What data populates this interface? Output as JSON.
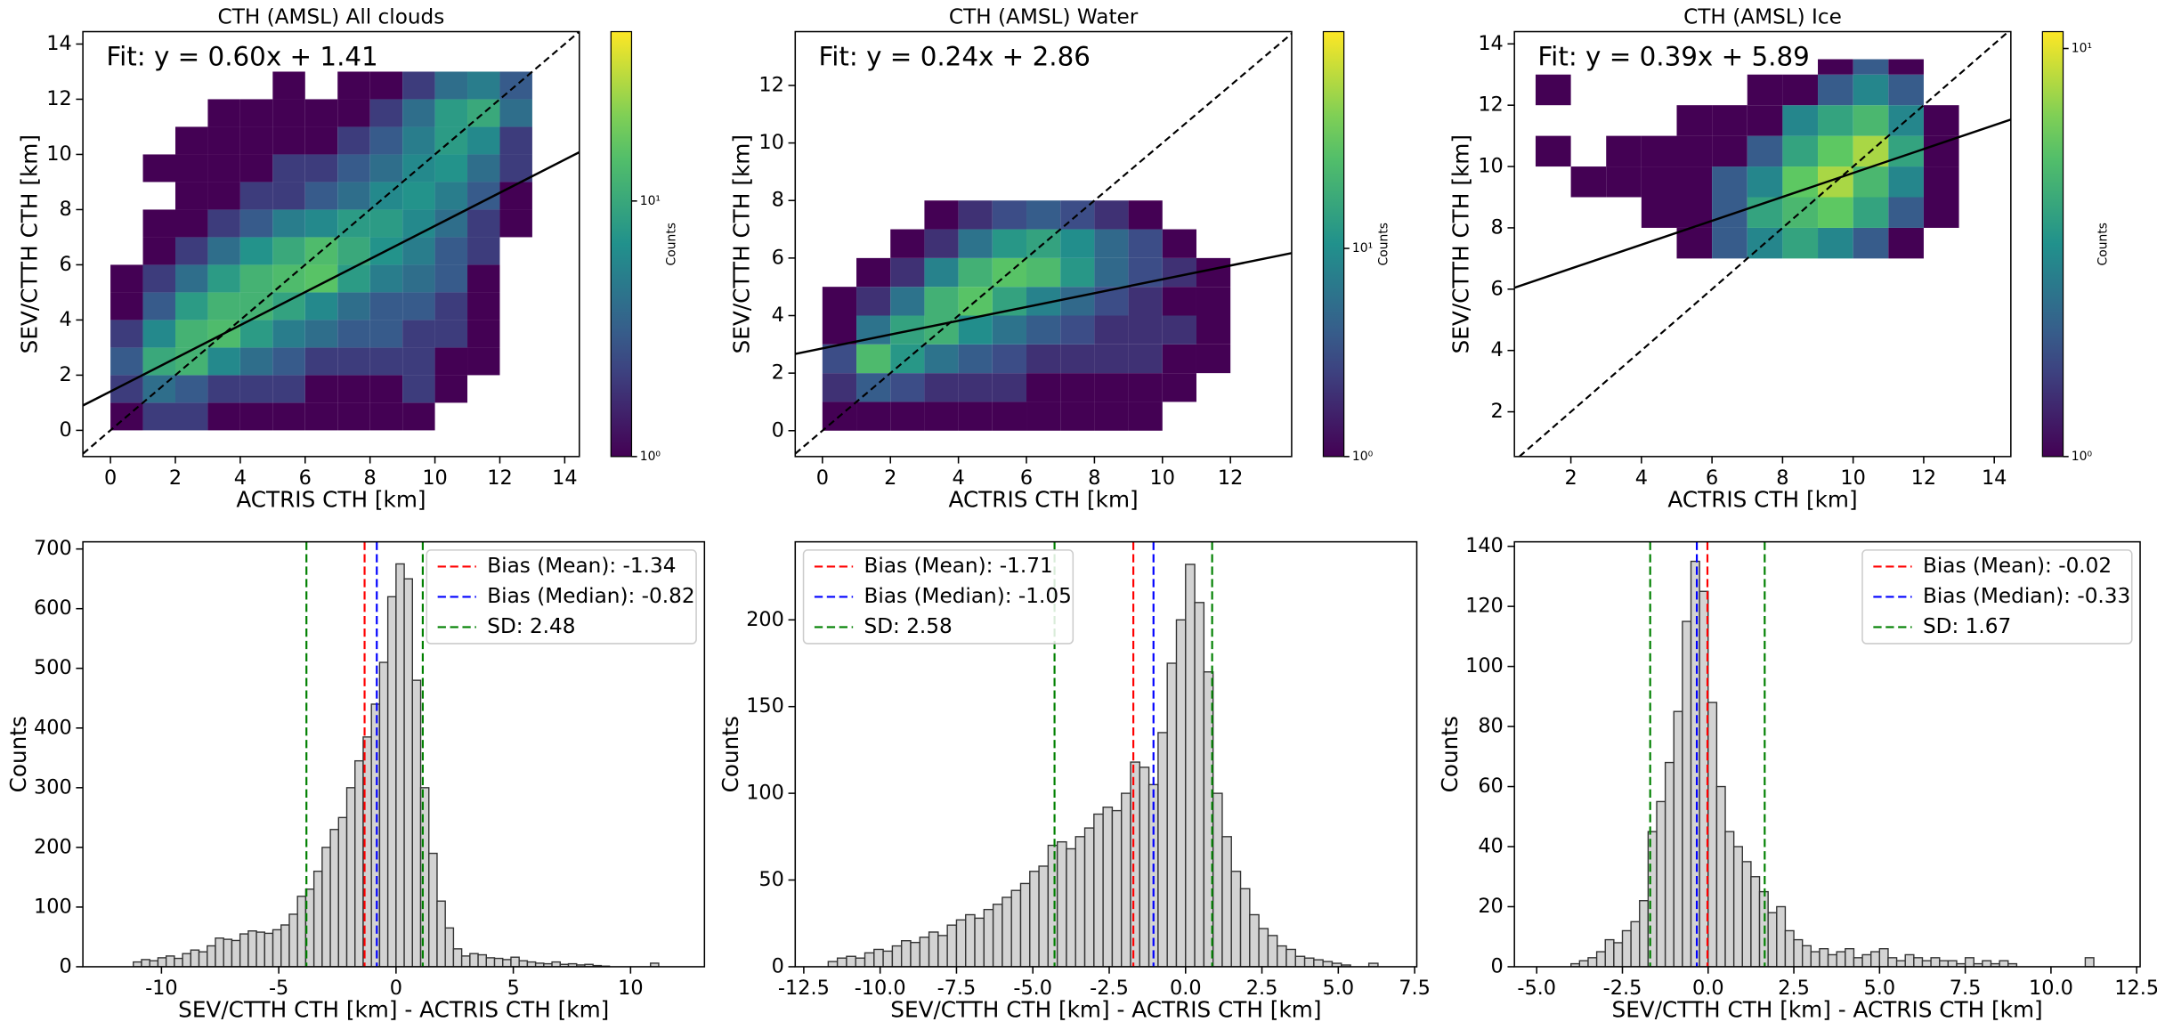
{
  "chart_data": [
    {
      "type": "heatmap",
      "title": "CTH (AMSL) All clouds",
      "x_label": "ACTRIS CTH [km]",
      "y_label": "SEV/CTTH CTH [km]",
      "xlim": [
        -0.85,
        14.45
      ],
      "ylim": [
        -0.95,
        14.45
      ],
      "xticks": [
        0,
        2,
        4,
        6,
        8,
        10,
        12,
        14
      ],
      "yticks": [
        0,
        2,
        4,
        6,
        8,
        10,
        12,
        14
      ],
      "fit": {
        "label": "Fit: y = 0.60x + 1.41",
        "slope": 0.6,
        "intercept": 1.41
      },
      "colorbar": {
        "label": "Counts",
        "log": true,
        "clim": [
          1,
          46
        ],
        "ticks": [
          {
            "value": 1,
            "label": "10⁰"
          },
          {
            "value": 10,
            "label": "10¹"
          }
        ]
      },
      "x_edges": [
        0,
        1,
        2,
        3,
        4,
        5,
        6,
        7,
        8,
        9,
        10,
        11,
        12,
        13
      ],
      "y_edges": [
        0,
        1,
        2,
        3,
        4,
        5,
        6,
        7,
        8,
        9,
        10,
        11,
        12,
        13
      ],
      "z": [
        [
          1,
          2,
          2,
          1,
          1,
          1,
          1,
          1,
          1,
          1,
          null,
          null,
          null
        ],
        [
          2,
          4,
          3,
          2,
          2,
          2,
          1,
          1,
          1,
          2,
          1,
          null,
          null
        ],
        [
          3,
          10,
          12,
          6,
          4,
          3,
          2,
          2,
          2,
          2,
          1,
          1,
          null
        ],
        [
          2,
          6,
          12,
          14,
          8,
          5,
          4,
          3,
          3,
          2,
          2,
          1,
          null
        ],
        [
          1,
          3,
          8,
          12,
          12,
          9,
          6,
          4,
          3,
          3,
          2,
          1,
          null
        ],
        [
          1,
          2,
          4,
          8,
          12,
          14,
          16,
          8,
          5,
          4,
          3,
          1,
          null
        ],
        [
          null,
          1,
          2,
          4,
          7,
          10,
          14,
          10,
          7,
          5,
          3,
          2,
          null
        ],
        [
          null,
          1,
          1,
          2,
          3,
          5,
          6,
          8,
          8,
          6,
          4,
          2,
          1
        ],
        [
          null,
          null,
          1,
          1,
          2,
          2,
          3,
          4,
          6,
          7,
          5,
          3,
          1
        ],
        [
          null,
          1,
          1,
          1,
          1,
          2,
          2,
          3,
          4,
          6,
          7,
          4,
          2
        ],
        [
          null,
          null,
          1,
          1,
          1,
          1,
          1,
          2,
          3,
          5,
          8,
          6,
          2
        ],
        [
          null,
          null,
          null,
          1,
          1,
          1,
          1,
          1,
          2,
          4,
          8,
          10,
          4
        ],
        [
          null,
          null,
          null,
          null,
          null,
          1,
          null,
          1,
          1,
          2,
          4,
          5,
          3
        ]
      ]
    },
    {
      "type": "heatmap",
      "title": "CTH (AMSL) Water",
      "x_label": "ACTRIS CTH [km]",
      "y_label": "SEV/CTTH CTH [km]",
      "xlim": [
        -0.8,
        13.8
      ],
      "ylim": [
        -0.9,
        13.87
      ],
      "xticks": [
        0,
        2,
        4,
        6,
        8,
        10,
        12
      ],
      "yticks": [
        0,
        2,
        4,
        6,
        8,
        10,
        12
      ],
      "fit": {
        "label": "Fit: y = 0.24x + 2.86",
        "slope": 0.24,
        "intercept": 2.86
      },
      "colorbar": {
        "label": "Counts",
        "log": true,
        "clim": [
          1,
          110
        ],
        "ticks": [
          {
            "value": 1,
            "label": "10⁰"
          },
          {
            "value": 10,
            "label": "10¹"
          }
        ]
      },
      "x_edges": [
        0,
        1,
        2,
        3,
        4,
        5,
        6,
        7,
        8,
        9,
        10,
        11,
        12
      ],
      "y_edges": [
        0,
        1,
        2,
        3,
        4,
        5,
        6,
        7,
        8
      ],
      "z": [
        [
          1,
          1,
          1,
          1,
          1,
          1,
          1,
          1,
          1,
          1,
          null,
          null
        ],
        [
          2,
          4,
          3,
          2,
          2,
          2,
          1,
          1,
          1,
          1,
          1,
          null
        ],
        [
          3,
          25,
          12,
          6,
          4,
          3,
          2,
          2,
          2,
          2,
          1,
          1
        ],
        [
          1,
          6,
          15,
          20,
          10,
          6,
          4,
          3,
          2,
          2,
          2,
          1
        ],
        [
          1,
          2,
          6,
          20,
          30,
          15,
          8,
          5,
          3,
          2,
          1,
          1
        ],
        [
          null,
          1,
          2,
          8,
          20,
          30,
          25,
          12,
          5,
          3,
          2,
          1
        ],
        [
          null,
          null,
          1,
          2,
          6,
          12,
          15,
          10,
          5,
          3,
          1,
          null
        ],
        [
          null,
          null,
          null,
          1,
          2,
          3,
          4,
          3,
          2,
          1,
          null,
          null
        ]
      ]
    },
    {
      "type": "heatmap",
      "title": "CTH (AMSL) Ice",
      "x_label": "ACTRIS CTH [km]",
      "y_label": "SEV/CTTH CTH [km]",
      "xlim": [
        0.4,
        14.47
      ],
      "ylim": [
        0.54,
        14.4
      ],
      "xticks": [
        2,
        4,
        6,
        8,
        10,
        12,
        14
      ],
      "yticks": [
        2,
        4,
        6,
        8,
        10,
        12,
        14
      ],
      "fit": {
        "label": "Fit: y = 0.39x + 5.89",
        "slope": 0.39,
        "intercept": 5.89
      },
      "colorbar": {
        "label": "Counts",
        "log": true,
        "clim": [
          1,
          11
        ],
        "ticks": [
          {
            "value": 1,
            "label": "10⁰"
          },
          {
            "value": 10,
            "label": "10¹"
          }
        ]
      },
      "x_edges": [
        1,
        2,
        3,
        4,
        5,
        6,
        7,
        8,
        9,
        10,
        11,
        12,
        13
      ],
      "y_edges": [
        7,
        8,
        9,
        10,
        11,
        12,
        13,
        13.5
      ],
      "z": [
        [
          null,
          null,
          null,
          null,
          1,
          2,
          3,
          4,
          3,
          2,
          1,
          null
        ],
        [
          null,
          null,
          null,
          1,
          1,
          2,
          4,
          5,
          6,
          4,
          2,
          1
        ],
        [
          null,
          1,
          1,
          1,
          1,
          2,
          3,
          6,
          8,
          5,
          3,
          1
        ],
        [
          1,
          null,
          1,
          1,
          1,
          1,
          2,
          4,
          6,
          8,
          4,
          1
        ],
        [
          null,
          null,
          null,
          null,
          1,
          1,
          1,
          3,
          4,
          5,
          3,
          1
        ],
        [
          1,
          null,
          null,
          null,
          null,
          null,
          1,
          1,
          2,
          3,
          2,
          null
        ],
        [
          null,
          null,
          null,
          null,
          null,
          null,
          null,
          null,
          1,
          2,
          1,
          null
        ]
      ]
    },
    {
      "type": "histogram",
      "x_label": "SEV/CTTH CTH [km] - ACTRIS CTH [km]",
      "y_label": "Counts",
      "xlim": [
        -13.35,
        13.15
      ],
      "ylim": [
        0,
        712
      ],
      "xticks": [
        -10,
        -5,
        0,
        5,
        10
      ],
      "yticks": [
        0,
        100,
        200,
        300,
        400,
        500,
        600,
        700
      ],
      "color": "#d3d3d3",
      "legend": "upper right",
      "bins": [
        -11.2,
        -10.85,
        -10.5,
        -10.15,
        -9.8,
        -9.45,
        -9.1,
        -8.75,
        -8.4,
        -8.05,
        -7.7,
        -7.35,
        -7,
        -6.65,
        -6.3,
        -5.95,
        -5.6,
        -5.25,
        -4.9,
        -4.55,
        -4.2,
        -3.85,
        -3.5,
        -3.15,
        -2.8,
        -2.45,
        -2.1,
        -1.75,
        -1.4,
        -1.05,
        -0.7,
        -0.35,
        0,
        0.35,
        0.7,
        1.05,
        1.4,
        1.75,
        2.1,
        2.45,
        2.8,
        3.15,
        3.5,
        3.85,
        4.2,
        4.55,
        4.9,
        5.25,
        5.6,
        5.95,
        6.3,
        6.65,
        7,
        7.35,
        7.7,
        8.05,
        8.4,
        8.75,
        9.1,
        9.45,
        9.8,
        10.15,
        10.5,
        10.85,
        11.2
      ],
      "counts": [
        8,
        12,
        10,
        15,
        18,
        14,
        22,
        28,
        25,
        35,
        48,
        46,
        44,
        55,
        60,
        58,
        56,
        62,
        70,
        88,
        118,
        130,
        160,
        200,
        230,
        250,
        300,
        345,
        385,
        440,
        510,
        620,
        675,
        650,
        480,
        300,
        190,
        110,
        65,
        30,
        18,
        22,
        20,
        15,
        14,
        12,
        16,
        10,
        8,
        6,
        5,
        8,
        4,
        5,
        3,
        4,
        2,
        1,
        0,
        0,
        0,
        0,
        0,
        6
      ],
      "lines": [
        {
          "label": "Bias (Mean): -1.34",
          "value": -1.34,
          "color": "#ff0000"
        },
        {
          "label": "Bias (Median): -0.82",
          "value": -0.82,
          "color": "#0000ff"
        },
        {
          "label": "SD: 2.48",
          "value": 2.48,
          "color": "#008000",
          "lines": [
            -3.82,
            1.14
          ]
        }
      ]
    },
    {
      "type": "histogram",
      "x_label": "SEV/CTTH CTH [km] - ACTRIS CTH [km]",
      "y_label": "Counts",
      "xlim": [
        -12.78,
        7.57
      ],
      "ylim": [
        0,
        245
      ],
      "xticks": [
        -12.5,
        {
          "value": -10,
          "label": "-10.0"
        },
        -7.5,
        {
          "value": -5,
          "label": "-5.0"
        },
        -2.5,
        {
          "value": 0,
          "label": "0.0"
        },
        2.5,
        {
          "value": 5,
          "label": "5.0"
        },
        7.5
      ],
      "yticks": [
        0,
        50,
        100,
        150,
        200
      ],
      "color": "#d3d3d3",
      "legend": "upper left",
      "bins": [
        -11.7,
        -11.4,
        -11.1,
        -10.8,
        -10.5,
        -10.2,
        -9.9,
        -9.6,
        -9.3,
        -9,
        -8.7,
        -8.4,
        -8.1,
        -7.8,
        -7.5,
        -7.2,
        -6.9,
        -6.6,
        -6.3,
        -6,
        -5.7,
        -5.4,
        -5.1,
        -4.8,
        -4.5,
        -4.2,
        -3.9,
        -3.6,
        -3.3,
        -3,
        -2.7,
        -2.4,
        -2.1,
        -1.8,
        -1.5,
        -1.2,
        -0.9,
        -0.6,
        -0.3,
        0,
        0.3,
        0.6,
        0.9,
        1.2,
        1.5,
        1.8,
        2.1,
        2.4,
        2.7,
        3,
        3.3,
        3.6,
        3.9,
        4.2,
        4.5,
        4.8,
        5.1,
        5.4,
        5.7,
        6,
        6.3
      ],
      "counts": [
        3,
        5,
        6,
        5,
        8,
        10,
        9,
        12,
        15,
        14,
        17,
        20,
        18,
        24,
        27,
        30,
        28,
        33,
        36,
        40,
        44,
        48,
        55,
        58,
        70,
        72,
        68,
        75,
        80,
        88,
        92,
        90,
        100,
        118,
        115,
        105,
        135,
        175,
        200,
        232,
        210,
        170,
        100,
        75,
        55,
        45,
        30,
        22,
        18,
        12,
        10,
        6,
        5,
        4,
        3,
        2,
        1,
        0,
        0,
        2
      ],
      "lines": [
        {
          "label": "Bias (Mean): -1.71",
          "value": -1.71,
          "color": "#ff0000"
        },
        {
          "label": "Bias (Median): -1.05",
          "value": -1.05,
          "color": "#0000ff"
        },
        {
          "label": "SD: 2.58",
          "value": 2.58,
          "color": "#008000",
          "lines": [
            -4.29,
            0.87
          ]
        }
      ]
    },
    {
      "type": "histogram",
      "x_label": "SEV/CTTH CTH [km] - ACTRIS CTH [km]",
      "y_label": "Counts",
      "xlim": [
        -5.65,
        12.6
      ],
      "ylim": [
        0,
        141.5
      ],
      "xticks": [
        {
          "value": -5,
          "label": "-5.0"
        },
        -2.5,
        {
          "value": 0,
          "label": "0.0"
        },
        2.5,
        {
          "value": 5,
          "label": "5.0"
        },
        7.5,
        {
          "value": 10,
          "label": "10.0"
        },
        12.5
      ],
      "yticks": [
        0,
        20,
        40,
        60,
        80,
        100,
        120,
        140
      ],
      "color": "#d3d3d3",
      "legend": "upper right",
      "bins": [
        -4,
        -3.75,
        -3.5,
        -3.25,
        -3,
        -2.75,
        -2.5,
        -2.25,
        -2,
        -1.75,
        -1.5,
        -1.25,
        -1,
        -0.75,
        -0.5,
        -0.25,
        0,
        0.25,
        0.5,
        0.75,
        1,
        1.25,
        1.5,
        1.75,
        2,
        2.25,
        2.5,
        2.75,
        3,
        3.25,
        3.5,
        3.75,
        4,
        4.25,
        4.5,
        4.75,
        5,
        5.25,
        5.5,
        5.75,
        6,
        6.25,
        6.5,
        6.75,
        7,
        7.25,
        7.5,
        7.75,
        8,
        8.25,
        8.5,
        8.75,
        9,
        9.25,
        9.5,
        9.75,
        10,
        10.25,
        10.5,
        10.75,
        11,
        11.25
      ],
      "counts": [
        1,
        2,
        3,
        5,
        9,
        8,
        12,
        15,
        22,
        45,
        55,
        68,
        85,
        115,
        135,
        125,
        88,
        60,
        45,
        40,
        35,
        30,
        25,
        18,
        20,
        12,
        9,
        7,
        5,
        6,
        4,
        5,
        6,
        3,
        4,
        5,
        6,
        3,
        2,
        4,
        3,
        2,
        3,
        2,
        2,
        1,
        3,
        1,
        2,
        1,
        2,
        1,
        0,
        0,
        0,
        0,
        0,
        0,
        0,
        0,
        3
      ],
      "lines": [
        {
          "label": "Bias (Mean): -0.02",
          "value": -0.02,
          "color": "#ff0000"
        },
        {
          "label": "Bias (Median): -0.33",
          "value": -0.33,
          "color": "#0000ff"
        },
        {
          "label": "SD: 1.67",
          "value": 1.67,
          "color": "#008000",
          "lines": [
            -1.69,
            1.65
          ]
        }
      ]
    }
  ]
}
